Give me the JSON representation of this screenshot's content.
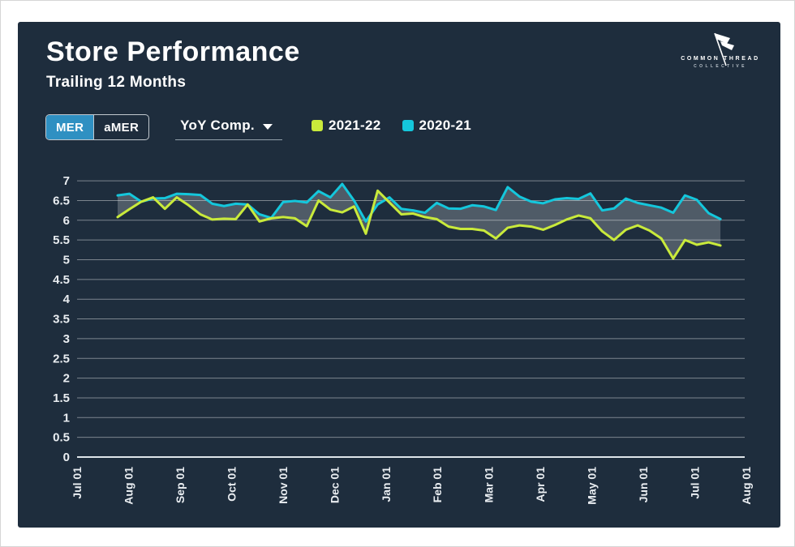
{
  "header": {
    "title": "Store Performance",
    "subtitle": "Trailing 12 Months"
  },
  "logo": {
    "icon": "flag-icon",
    "line1": "COMMON THREAD",
    "line2": "COLLECTIVE"
  },
  "controls": {
    "metric_toggle": {
      "options": [
        {
          "label": "MER",
          "selected": true
        },
        {
          "label": "aMER",
          "selected": false
        }
      ],
      "selected_color": "#2f90c2"
    },
    "comparison_dropdown": {
      "value": "YoY Comp.",
      "icon": "chevron-down-icon"
    }
  },
  "legend": [
    {
      "label": "2021-22",
      "color": "#c9ea3b"
    },
    {
      "label": "2020-21",
      "color": "#14c7dc"
    }
  ],
  "colors": {
    "card_background": "#1e2d3d",
    "page_background": "#ffffff",
    "text": "#ffffff",
    "gridline": "rgba(255,255,255,0.42)",
    "band_fill": "rgba(255,255,255,0.22)"
  },
  "chart_data": {
    "type": "line",
    "title": "Store Performance",
    "subtitle": "Trailing 12 Months",
    "xlabel": "",
    "ylabel": "",
    "ylim": [
      0,
      7
    ],
    "y_ticks": [
      0,
      0.5,
      1,
      1.5,
      2,
      2.5,
      3,
      3.5,
      4,
      4.5,
      5,
      5.5,
      6,
      6.5,
      7
    ],
    "x_tick_labels": [
      "Jul 01",
      "Aug 01",
      "Sep 01",
      "Oct 01",
      "Nov 01",
      "Dec 01",
      "Jan 01",
      "Feb 01",
      "Mar 01",
      "Apr 01",
      "May 01",
      "Jun 01",
      "Jul 01",
      "Aug 01"
    ],
    "grid": "horizontal",
    "legend_position": "top",
    "x_unit": "weekly points from late Jul to mid Jul",
    "band_between_series": true,
    "series": [
      {
        "name": "2020-21",
        "color": "#14c7dc",
        "values": [
          6.63,
          6.67,
          6.47,
          6.55,
          6.56,
          6.67,
          6.66,
          6.64,
          6.42,
          6.36,
          6.42,
          6.4,
          6.15,
          6.06,
          6.46,
          6.49,
          6.45,
          6.74,
          6.58,
          6.92,
          6.5,
          5.97,
          6.4,
          6.58,
          6.29,
          6.25,
          6.19,
          6.44,
          6.3,
          6.29,
          6.38,
          6.35,
          6.26,
          6.84,
          6.6,
          6.47,
          6.43,
          6.53,
          6.56,
          6.54,
          6.68,
          6.25,
          6.3,
          6.55,
          6.44,
          6.38,
          6.32,
          6.19,
          6.63,
          6.52,
          6.18,
          6.03
        ]
      },
      {
        "name": "2021-22",
        "color": "#c9ea3b",
        "values": [
          6.08,
          6.28,
          6.47,
          6.58,
          6.29,
          6.58,
          6.38,
          6.15,
          6.02,
          6.04,
          6.03,
          6.4,
          5.97,
          6.05,
          6.08,
          6.05,
          5.85,
          6.5,
          6.27,
          6.2,
          6.35,
          5.66,
          6.75,
          6.45,
          6.15,
          6.17,
          6.08,
          6.03,
          5.84,
          5.78,
          5.78,
          5.74,
          5.54,
          5.81,
          5.87,
          5.84,
          5.76,
          5.88,
          6.02,
          6.12,
          6.05,
          5.72,
          5.5,
          5.76,
          5.87,
          5.74,
          5.54,
          5.03,
          5.5,
          5.38,
          5.44,
          5.36
        ]
      }
    ]
  }
}
